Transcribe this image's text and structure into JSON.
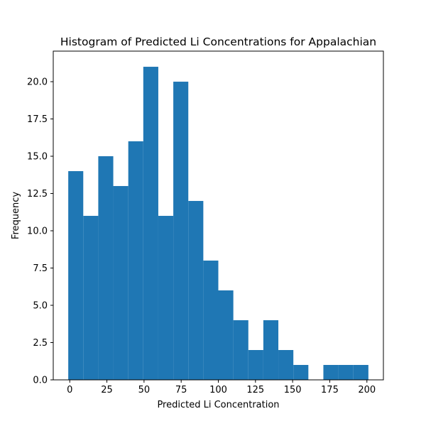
{
  "chart_data": {
    "type": "bar",
    "title": "Histogram of Predicted Li Concentrations for Appalachian",
    "xlabel": "Predicted Li Concentration",
    "ylabel": "Frequency",
    "bar_color": "#1f77b4",
    "bin_start": -1,
    "bin_width": 10.1,
    "values": [
      14,
      11,
      15,
      13,
      16,
      21,
      11,
      20,
      12,
      8,
      6,
      4,
      2,
      4,
      2,
      1,
      0,
      1,
      1,
      1
    ],
    "xlim": [
      -11.1,
      211.1
    ],
    "ylim": [
      0,
      22.05
    ],
    "x_ticks": [
      0,
      25,
      50,
      75,
      100,
      125,
      150,
      175,
      200
    ],
    "x_tick_labels": [
      "0",
      "25",
      "50",
      "75",
      "100",
      "125",
      "150",
      "175",
      "200"
    ],
    "y_ticks": [
      0,
      2.5,
      5,
      7.5,
      10,
      12.5,
      15,
      17.5,
      20
    ],
    "y_tick_labels": [
      "0.0",
      "2.5",
      "5.0",
      "7.5",
      "10.0",
      "12.5",
      "15.0",
      "17.5",
      "20.0"
    ],
    "grid": false,
    "legend": "none"
  }
}
